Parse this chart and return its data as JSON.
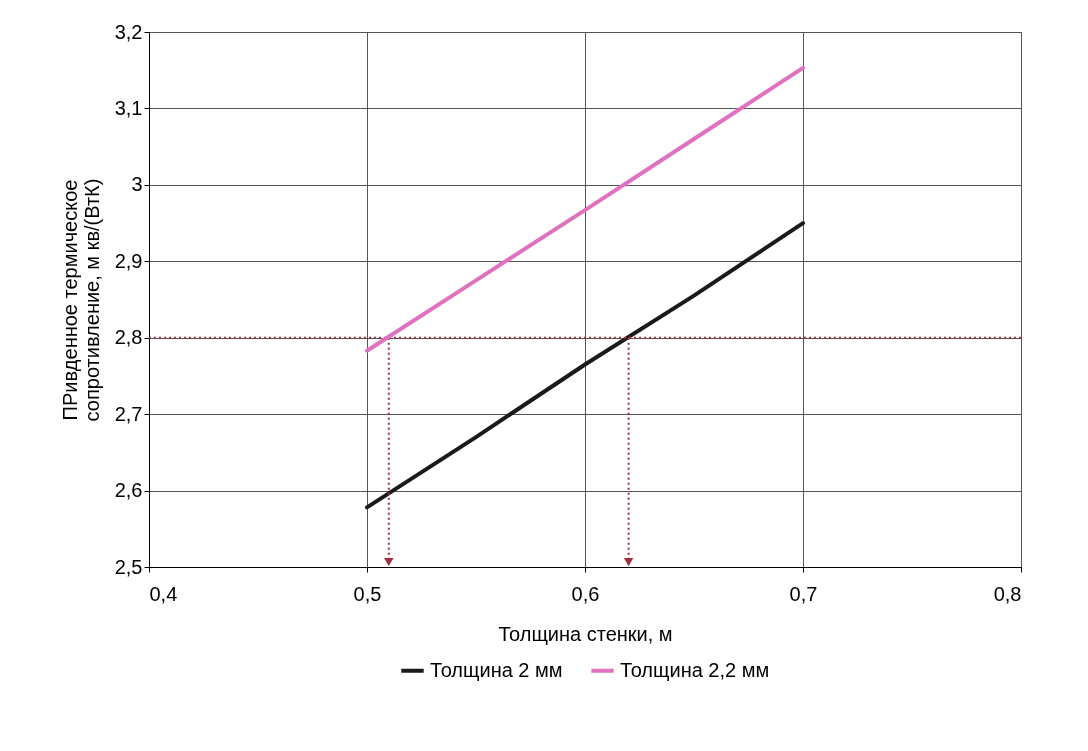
{
  "chart_data": {
    "type": "line",
    "xlabel": "Толщина стенки, м",
    "ylabel": "ПРивденное термическое\nсопротивление, м кв/(ВтК)",
    "series": [
      {
        "name": "Толщина 2 мм",
        "color": "#1a1a1a",
        "x": [
          0.5,
          0.55,
          0.6,
          0.65,
          0.7
        ],
        "values": [
          2.578,
          2.67,
          2.765,
          2.855,
          2.95
        ]
      },
      {
        "name": "Толщина 2,2 мм",
        "color": "#e070c0",
        "x": [
          0.5,
          0.55,
          0.6,
          0.65,
          0.7
        ],
        "values": [
          2.783,
          2.875,
          2.967,
          3.06,
          3.153
        ]
      }
    ],
    "xlim": [
      0.4,
      0.8
    ],
    "xticks": [
      {
        "value": 0.4,
        "label": "0,4"
      },
      {
        "value": 0.5,
        "label": "0,5"
      },
      {
        "value": 0.6,
        "label": "0,6"
      },
      {
        "value": 0.7,
        "label": "0,7"
      },
      {
        "value": 0.8,
        "label": "0,8"
      }
    ],
    "ylim": [
      2.5,
      3.2
    ],
    "yticks": [
      {
        "value": 2.5,
        "label": "2,5"
      },
      {
        "value": 2.6,
        "label": "2,6"
      },
      {
        "value": 2.7,
        "label": "2,7"
      },
      {
        "value": 2.8,
        "label": "2,8"
      },
      {
        "value": 2.9,
        "label": "2,9"
      },
      3,
      {
        "value": 3.1,
        "label": "3,1"
      },
      {
        "value": 3.2,
        "label": "3,2"
      }
    ],
    "ref_lines": [
      {
        "axis": "y",
        "value": 2.8,
        "color": "#a03040",
        "line_style": "dotted"
      },
      {
        "axis": "x",
        "value": 0.51,
        "color": "#a03040",
        "line_style": "dotted"
      },
      {
        "axis": "x",
        "value": 0.62,
        "color": "#a03040",
        "line_style": "dotted"
      }
    ],
    "grid": true,
    "legend": "bottom",
    "marker": "none",
    "line_style": "solid"
  }
}
